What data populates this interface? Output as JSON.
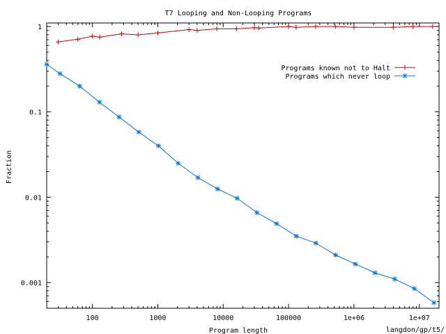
{
  "chart_data": {
    "type": "line",
    "title": "T7 Looping and Non-Looping Programs",
    "xlabel": "Program length",
    "ylabel": "Fraction",
    "xscale": "log",
    "yscale": "log",
    "xlim": [
      20,
      20000000
    ],
    "ylim": [
      0.0005,
      1.1
    ],
    "xticks": [
      {
        "value": 100,
        "label": "100"
      },
      {
        "value": 1000,
        "label": "1000"
      },
      {
        "value": 10000,
        "label": "10000"
      },
      {
        "value": 100000,
        "label": "100000"
      },
      {
        "value": 1000000,
        "label": "1e+06"
      },
      {
        "value": 10000000,
        "label": "1e+07"
      }
    ],
    "yticks": [
      {
        "value": 0.001,
        "label": "0.001"
      },
      {
        "value": 0.01,
        "label": "0.01"
      },
      {
        "value": 0.1,
        "label": "0.1"
      },
      {
        "value": 1,
        "label": "1"
      }
    ],
    "legend_position": "top-right",
    "grid": false,
    "annotation": "langdon/gp/t5/",
    "series": [
      {
        "name": "Programs known not to Halt",
        "color": "#cc0000",
        "marker": "plus",
        "points": [
          [
            30,
            0.66
          ],
          [
            60,
            0.71
          ],
          [
            100,
            0.77
          ],
          [
            130,
            0.75
          ],
          [
            280,
            0.82
          ],
          [
            500,
            0.8
          ],
          [
            1000,
            0.84
          ],
          [
            3000,
            0.92
          ],
          [
            4000,
            0.9
          ],
          [
            8000,
            0.94
          ],
          [
            16000,
            0.94
          ],
          [
            30000,
            0.97
          ],
          [
            35000,
            0.96
          ],
          [
            100000,
            1.0
          ],
          [
            130000,
            0.98
          ],
          [
            260000,
            1.0
          ],
          [
            520000,
            1.0
          ],
          [
            1000000,
            0.98
          ],
          [
            4000000,
            0.98
          ],
          [
            8000000,
            1.0
          ],
          [
            16000000,
            1.0
          ]
        ]
      },
      {
        "name": "Programs which  never loop",
        "color": "#0a73d9",
        "marker": "star",
        "points": [
          [
            20,
            0.36
          ],
          [
            32,
            0.28
          ],
          [
            64,
            0.2
          ],
          [
            128,
            0.13
          ],
          [
            256,
            0.087
          ],
          [
            512,
            0.058
          ],
          [
            1024,
            0.04
          ],
          [
            2048,
            0.025
          ],
          [
            4096,
            0.017
          ],
          [
            8192,
            0.0125
          ],
          [
            16384,
            0.0097
          ],
          [
            32768,
            0.0066
          ],
          [
            65536,
            0.0049
          ],
          [
            131072,
            0.0035
          ],
          [
            262144,
            0.0029
          ],
          [
            524288,
            0.0021
          ],
          [
            1048576,
            0.00165
          ],
          [
            2097152,
            0.0013
          ],
          [
            4194304,
            0.0011
          ],
          [
            8388608,
            0.00085
          ],
          [
            16777216,
            0.00058
          ]
        ]
      }
    ]
  }
}
